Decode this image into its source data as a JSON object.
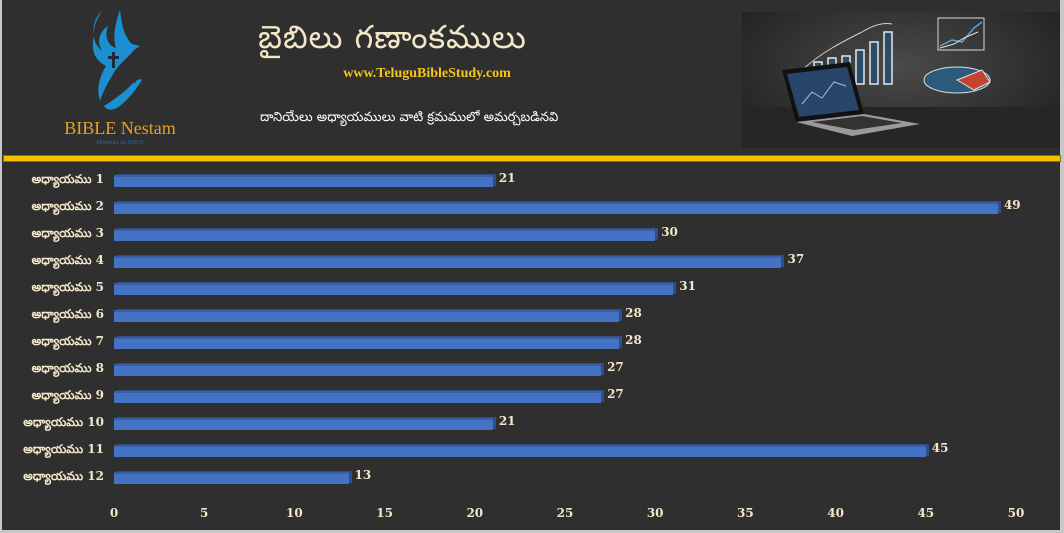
{
  "header": {
    "title": "బైబిలు గణాంకములు",
    "website": "www.TeluguBibleStudy.com",
    "subtitle": "దానియేలు అధ్యాయములు వాటి క్రమములో అమర్చబడినవి"
  },
  "logo": {
    "icon": "dove-cross-hand-icon",
    "title": "BIBLE Nestam",
    "tagline": "Disciples of JESUS",
    "colors": {
      "icon": "#1b8fd1",
      "title": "#e6a12a",
      "tagline": "#2e6da4"
    }
  },
  "hero_image": {
    "description": "laptop-with-chalk-charts-image"
  },
  "colors": {
    "background": "#2f2f2f",
    "bar": "#4472c4",
    "divider": "#f5c000",
    "text": "#f3e7c8"
  },
  "chart_data": {
    "type": "bar",
    "orientation": "horizontal",
    "title": "దానియేలు అధ్యాయములు వాటి క్రమములో అమర్చబడినవి",
    "categories": [
      "అధ్యాయము 1",
      "అధ్యాయము 2",
      "అధ్యాయము 3",
      "అధ్యాయము 4",
      "అధ్యాయము 5",
      "అధ్యాయము 6",
      "అధ్యాయము 7",
      "అధ్యాయము 8",
      "అధ్యాయము 9",
      "అధ్యాయము 10",
      "అధ్యాయము 11",
      "అధ్యాయము 12"
    ],
    "values": [
      21,
      49,
      30,
      37,
      31,
      28,
      28,
      27,
      27,
      21,
      45,
      13
    ],
    "value_labels": [
      "21",
      "49",
      "30",
      "37",
      "31",
      "28",
      "28",
      "27",
      "27",
      "21",
      "45",
      "13"
    ],
    "xlabel": "",
    "ylabel": "",
    "xlim": [
      0,
      50
    ],
    "xticks": [
      "0",
      "5",
      "10",
      "15",
      "20",
      "25",
      "30",
      "35",
      "40",
      "45",
      "50"
    ],
    "grid": false,
    "legend": null
  }
}
